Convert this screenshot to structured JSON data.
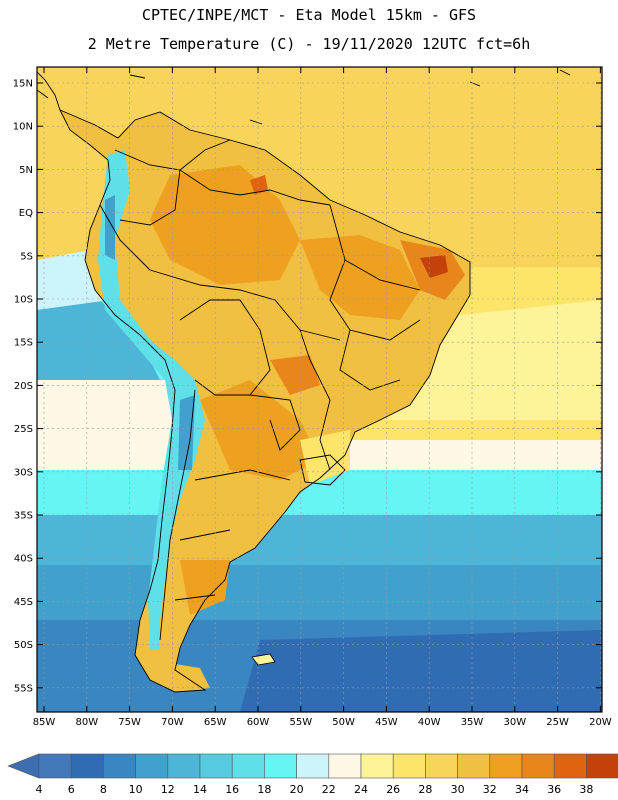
{
  "title_line1": "CPTEC/INPE/MCT -   Eta Model 15km - GFS",
  "title_line2": "2 Metre Temperature (C) - 19/11/2020 12UTC fct=6h",
  "lat_labels": [
    "15N",
    "10N",
    "5N",
    "EQ",
    "5S",
    "10S",
    "15S",
    "20S",
    "25S",
    "30S",
    "35S",
    "40S",
    "45S",
    "50S",
    "55S"
  ],
  "lon_labels": [
    "85W",
    "80W",
    "75W",
    "70W",
    "65W",
    "60W",
    "55W",
    "50W",
    "45W",
    "40W",
    "35W",
    "30W",
    "25W",
    "20W"
  ],
  "colorbar": {
    "labels": [
      "4",
      "6",
      "8",
      "10",
      "12",
      "14",
      "16",
      "18",
      "20",
      "22",
      "24",
      "26",
      "28",
      "30",
      "32",
      "34",
      "36",
      "38"
    ],
    "colors": [
      "#4478b8",
      "#2f6cb3",
      "#3a86c0",
      "#41a0cc",
      "#4cb5d8",
      "#55cbe0",
      "#5fe0e8",
      "#66f5f5",
      "#cdf4fb",
      "#fff8e6",
      "#fff39a",
      "#fde56a",
      "#f8d45a",
      "#f2c040",
      "#eea020",
      "#e8861c",
      "#e06410",
      "#c4420a",
      "#b33808"
    ],
    "min_color": "#3d6fb0",
    "max_color": "#bd3e0c"
  }
}
